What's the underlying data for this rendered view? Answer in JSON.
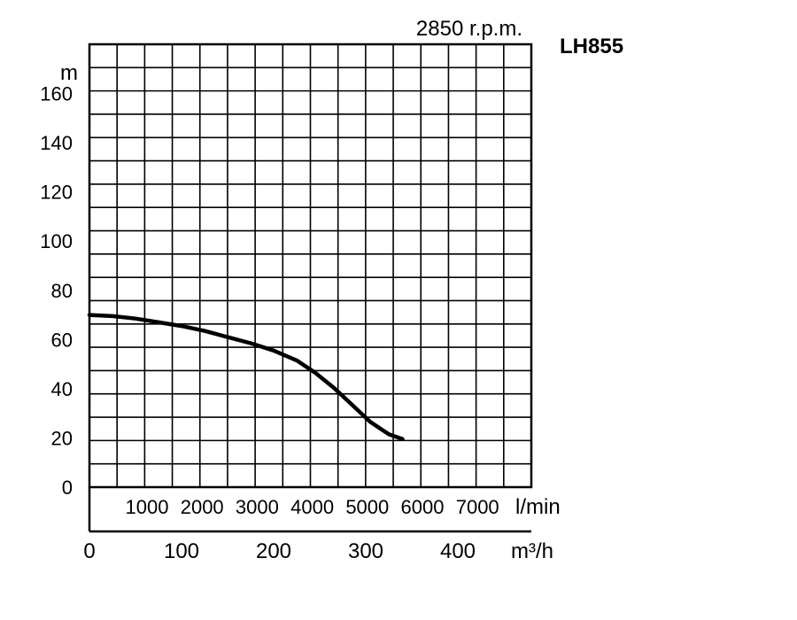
{
  "chart_data": {
    "type": "line",
    "title": "LH855",
    "subtitle": "2850 r.p.m.",
    "ylabel": "m",
    "x_unit_flow_lmin": "l/min",
    "x_unit_flow_m3h": "m³/h",
    "ylim": [
      0,
      180
    ],
    "xlim_m3h": [
      0,
      400
    ],
    "y_ticks": [
      "0",
      "20",
      "40",
      "60",
      "80",
      "100",
      "120",
      "140",
      "160"
    ],
    "x_ticks_lmin": [
      "1000",
      "2000",
      "3000",
      "4000",
      "5000",
      "6000",
      "7000"
    ],
    "x_ticks_m3h": [
      "0",
      "100",
      "200",
      "300",
      "400"
    ],
    "grid": true,
    "series": [
      {
        "x": [
          0,
          25,
          50,
          75,
          100,
          125,
          150,
          175,
          200,
          225,
          245,
          265,
          285,
          305,
          325,
          340
        ],
        "y": [
          70,
          69.5,
          68.5,
          67,
          65.5,
          63.5,
          61,
          58.5,
          55.5,
          51.5,
          46.5,
          40.5,
          33.5,
          26.5,
          21.5,
          19.5
        ]
      }
    ]
  }
}
